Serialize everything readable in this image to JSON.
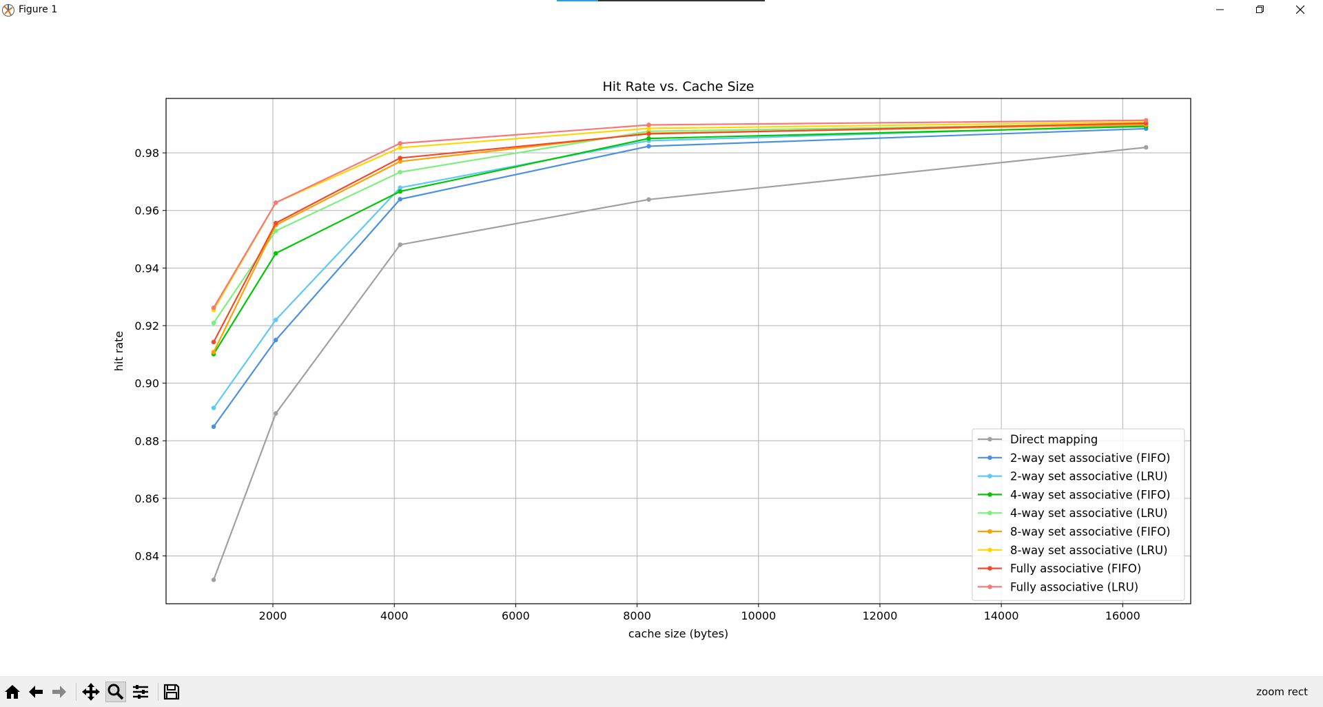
{
  "window": {
    "title": "Figure 1",
    "status": "zoom rect"
  },
  "toolbar": {
    "tools": [
      "home-icon",
      "back-arrow-icon",
      "forward-arrow-icon",
      "move-icon",
      "zoom-icon",
      "configure-icon",
      "save-icon"
    ]
  },
  "chart_data": {
    "type": "line",
    "title": "Hit Rate vs. Cache Size",
    "xlabel": "cache size (bytes)",
    "ylabel": "hit rate",
    "xlim": [
      240,
      17120
    ],
    "ylim": [
      0.8234,
      0.9989
    ],
    "xticks": [
      2000,
      4000,
      6000,
      8000,
      10000,
      12000,
      14000,
      16000
    ],
    "yticks": [
      0.84,
      0.86,
      0.88,
      0.9,
      0.92,
      0.94,
      0.96,
      0.98
    ],
    "xtick_labels": [
      "2000",
      "4000",
      "6000",
      "8000",
      "10000",
      "12000",
      "14000",
      "16000"
    ],
    "ytick_labels": [
      "0.84",
      "0.86",
      "0.88",
      "0.90",
      "0.92",
      "0.94",
      "0.96",
      "0.98"
    ],
    "grid": true,
    "legend": "lower-right",
    "x": [
      1024,
      2048,
      4096,
      8192,
      16384
    ],
    "series": [
      {
        "name": "Direct mapping",
        "color": "#a0a0a0",
        "values": [
          0.8317,
          0.8895,
          0.9481,
          0.9638,
          0.9819
        ]
      },
      {
        "name": "2-way set associative (FIFO)",
        "color": "#4a90e2",
        "values": [
          0.8849,
          0.915,
          0.9639,
          0.9823,
          0.9884
        ]
      },
      {
        "name": "2-way set associative (LRU)",
        "color": "#5ec8f8",
        "values": [
          0.8914,
          0.922,
          0.9679,
          0.9842,
          0.9895
        ]
      },
      {
        "name": "4-way set associative (FIFO)",
        "color": "#00c800",
        "values": [
          0.9101,
          0.9451,
          0.9666,
          0.985,
          0.9892
        ]
      },
      {
        "name": "4-way set associative (LRU)",
        "color": "#7cf07c",
        "values": [
          0.9209,
          0.9529,
          0.9733,
          0.9875,
          0.9901
        ]
      },
      {
        "name": "8-way set associative (FIFO)",
        "color": "#ffa000",
        "values": [
          0.9108,
          0.9549,
          0.977,
          0.9868,
          0.9898
        ]
      },
      {
        "name": "8-way set associative (LRU)",
        "color": "#ffd700",
        "values": [
          0.9254,
          0.9627,
          0.9818,
          0.9885,
          0.9907
        ]
      },
      {
        "name": "Fully associative (FIFO)",
        "color": "#f04a2c",
        "values": [
          0.9143,
          0.9556,
          0.9782,
          0.9866,
          0.9903
        ]
      },
      {
        "name": "Fully associative (LRU)",
        "color": "#f77878",
        "values": [
          0.9262,
          0.9627,
          0.9833,
          0.9897,
          0.9913
        ]
      }
    ]
  }
}
